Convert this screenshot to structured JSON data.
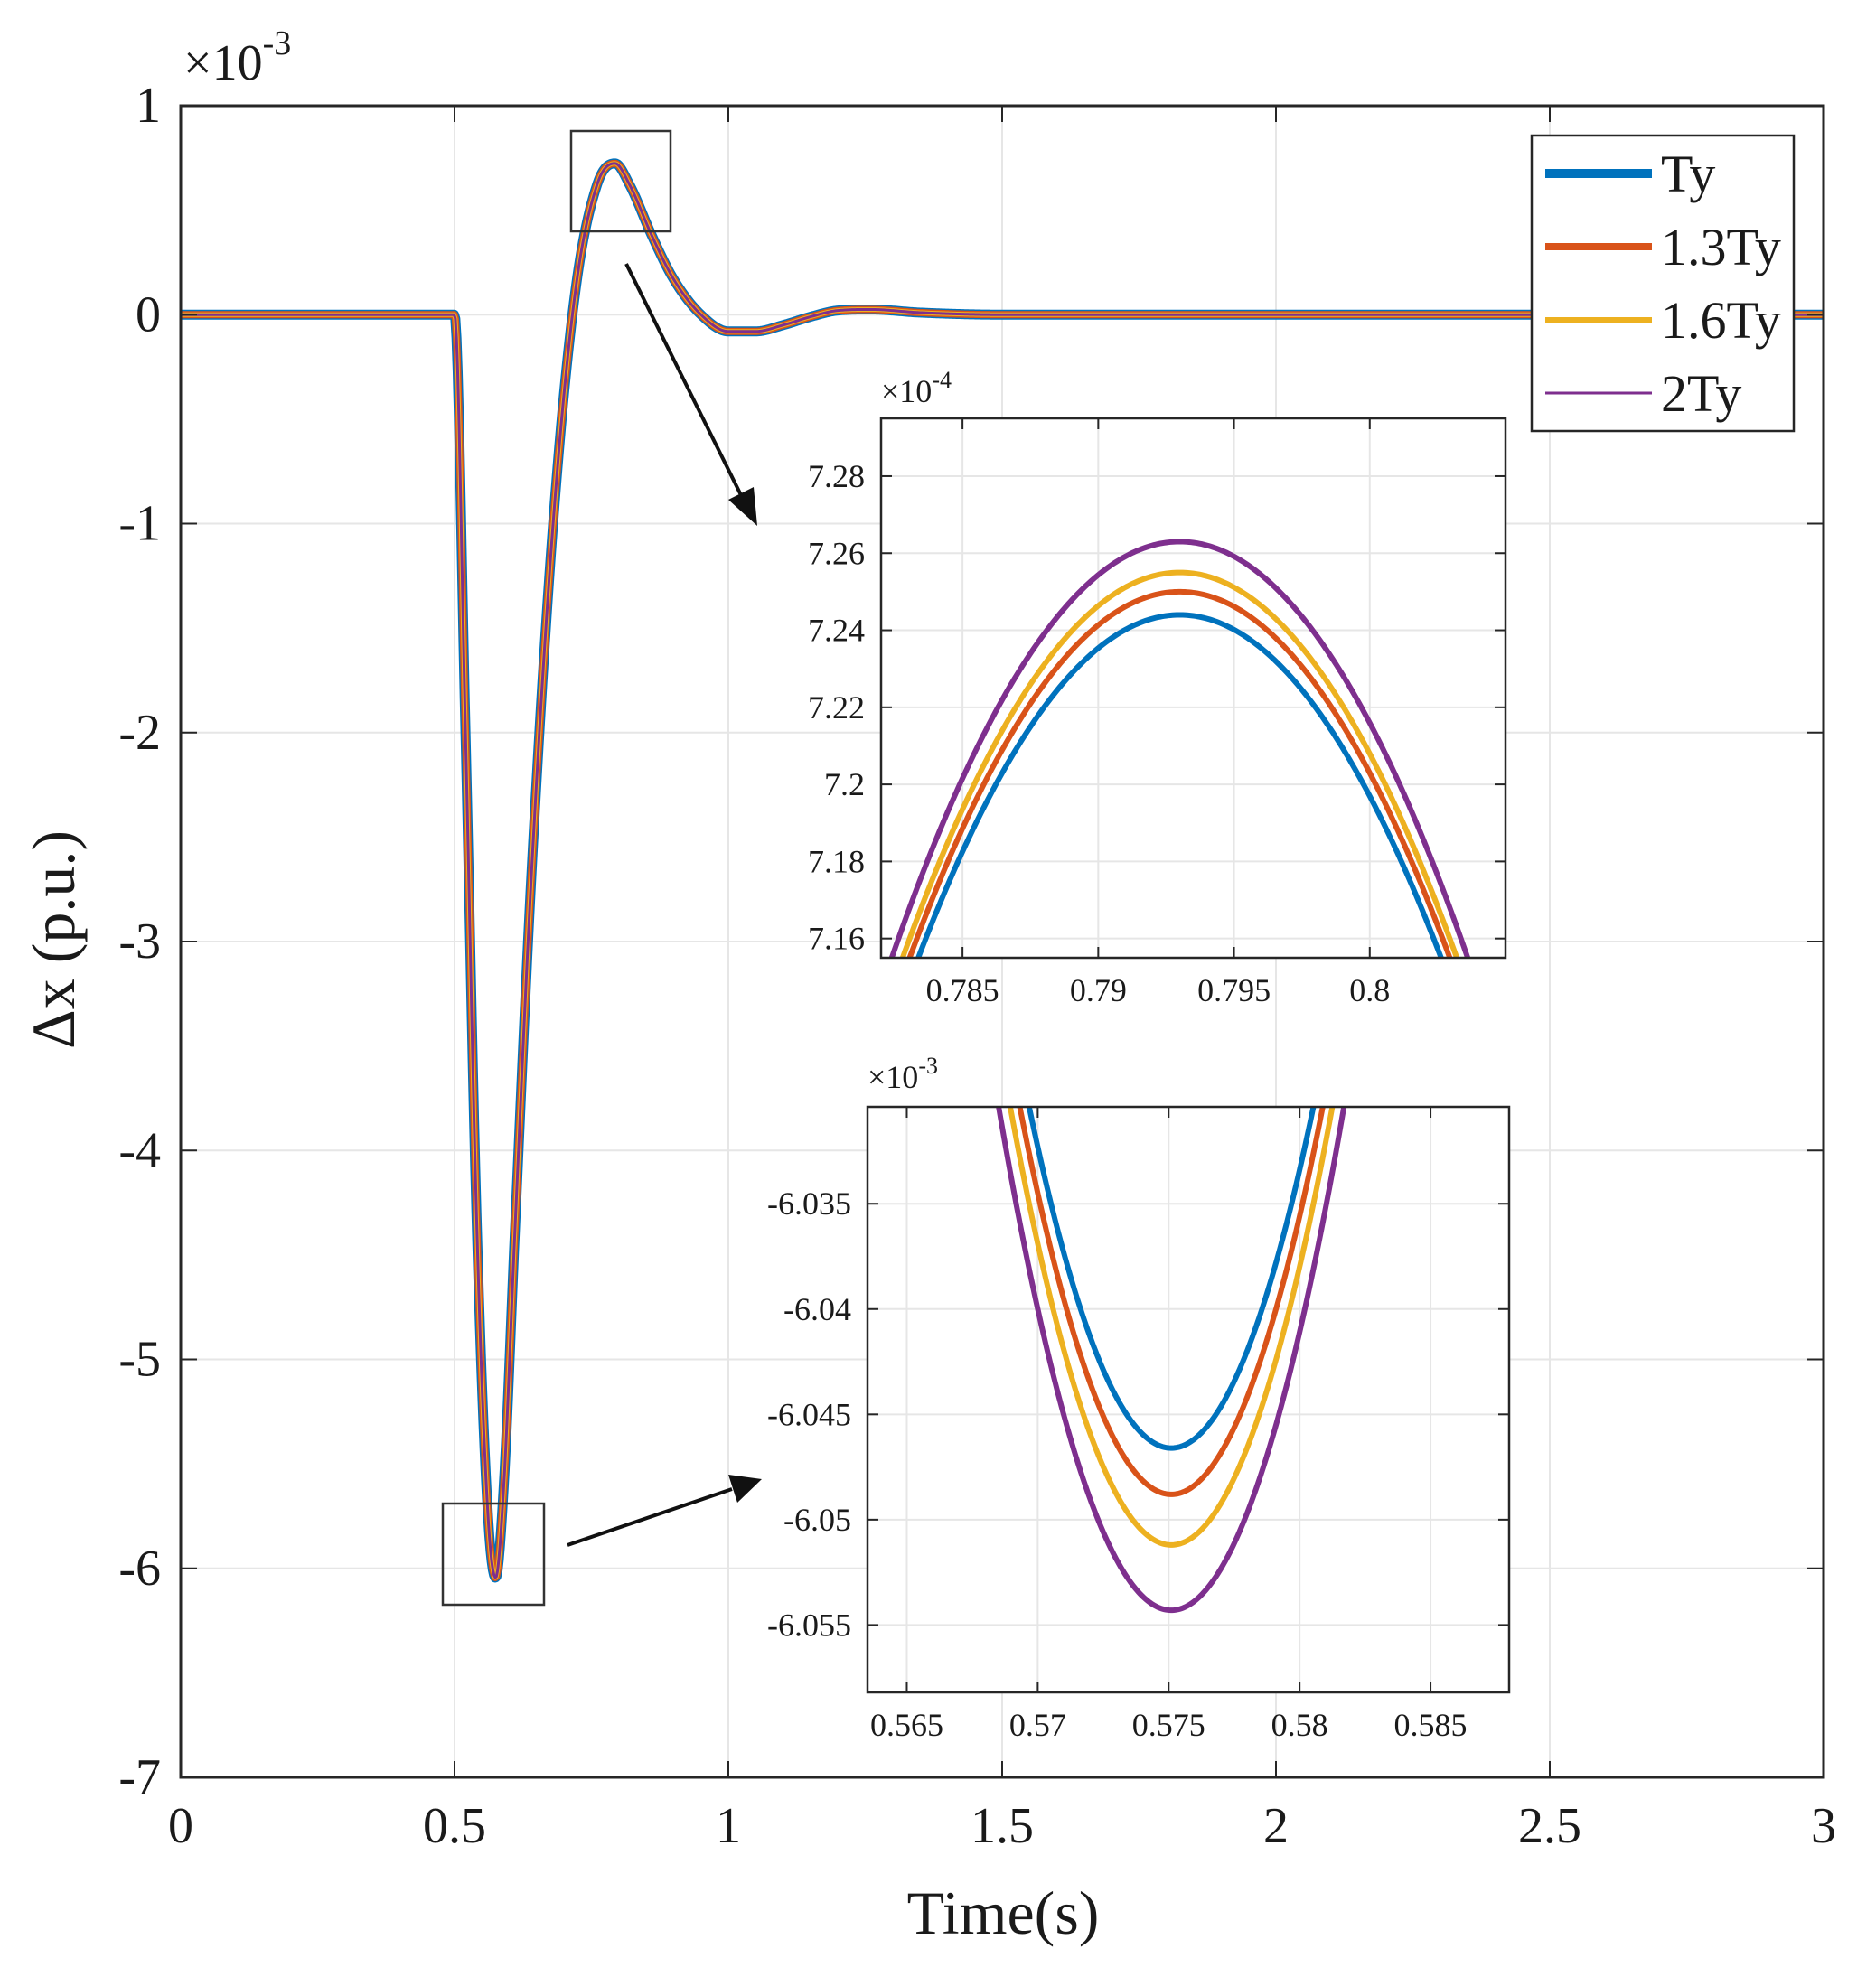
{
  "chart_data": {
    "type": "line",
    "main": {
      "xlabel": "Time(s)",
      "ylabel": "Δx (p.u.)",
      "xlim": [
        0,
        3
      ],
      "ylim": [
        -7,
        1
      ],
      "xticks": [
        0,
        0.5,
        1,
        1.5,
        2,
        2.5,
        3
      ],
      "xtick_labels": [
        "0",
        "0.5",
        "1",
        "1.5",
        "2",
        "2.5",
        "3"
      ],
      "yticks": [
        1,
        0,
        -1,
        -2,
        -3,
        -4,
        -5,
        -6,
        -7
      ],
      "ytick_labels": [
        "1",
        "0",
        "-1",
        "-2",
        "-3",
        "-4",
        "-5",
        "-6",
        "-7"
      ],
      "y_exponent": {
        "base": "×10",
        "power": "-3"
      },
      "grid": true,
      "legend": "top-right",
      "series": [
        {
          "name": "Ty",
          "color": "#0072BD",
          "width": 3
        },
        {
          "name": "1.3Ty",
          "color": "#D95319",
          "width": 2.5
        },
        {
          "name": "1.6Ty",
          "color": "#EDB120",
          "width": 2
        },
        {
          "name": "2Ty",
          "color": "#7E2F8E",
          "width": 1.5
        }
      ],
      "response": {
        "t": [
          0,
          0.5,
          0.52,
          0.54,
          0.56,
          0.575,
          0.59,
          0.61,
          0.64,
          0.68,
          0.72,
          0.76,
          0.793,
          0.82,
          0.86,
          0.9,
          0.95,
          1.0,
          1.05,
          1.1,
          1.15,
          1.2,
          1.26,
          1.35,
          1.5,
          1.8,
          2.2,
          2.6,
          3.0
        ],
        "y": [
          0,
          0,
          -2.0,
          -4.3,
          -5.7,
          -6.045,
          -5.6,
          -4.4,
          -2.7,
          -1.0,
          0.1,
          0.62,
          0.724,
          0.62,
          0.38,
          0.17,
          0.0,
          -0.08,
          -0.08,
          -0.05,
          -0.01,
          0.02,
          0.025,
          0.01,
          0.0,
          0.0,
          0.0,
          0.0,
          0.0
        ]
      }
    },
    "inset_peak": {
      "xlim": [
        0.782,
        0.805
      ],
      "ylim": [
        7.155,
        7.295
      ],
      "xticks": [
        0.785,
        0.79,
        0.795,
        0.8
      ],
      "xtick_labels": [
        "0.785",
        "0.79",
        "0.795",
        "0.8"
      ],
      "yticks": [
        7.28,
        7.26,
        7.24,
        7.22,
        7.2,
        7.18,
        7.16
      ],
      "ytick_labels": [
        "7.28",
        "7.26",
        "7.24",
        "7.22",
        "7.2",
        "7.18",
        "7.16"
      ],
      "y_exponent": {
        "base": "×10",
        "power": "-4"
      },
      "peak_t": 0.793,
      "peaks": [
        7.244,
        7.25,
        7.255,
        7.263
      ],
      "curvature": 0.96
    },
    "inset_trough": {
      "xlim": [
        0.5635,
        0.588
      ],
      "ylim": [
        -6.0582,
        -6.0304
      ],
      "xticks": [
        0.565,
        0.57,
        0.575,
        0.58,
        0.585
      ],
      "xtick_labels": [
        "0.565",
        "0.57",
        "0.575",
        "0.58",
        "0.585"
      ],
      "yticks": [
        -6.035,
        -6.04,
        -6.045,
        -6.05,
        -6.055
      ],
      "ytick_labels": [
        "-6.035",
        "-6.04",
        "-6.045",
        "-6.05",
        "-6.055"
      ],
      "y_exponent": {
        "base": "×10",
        "power": "-3"
      },
      "trough_t": 0.5751,
      "troughs": [
        -6.0466,
        -6.0488,
        -6.0512,
        -6.0543
      ],
      "curvature": 0.55
    }
  }
}
